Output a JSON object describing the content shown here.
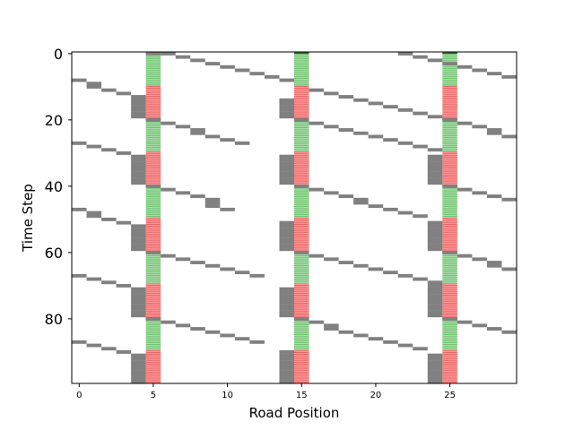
{
  "chart_data": {
    "type": "heatmap",
    "title": "",
    "xlabel": "Road Position",
    "ylabel": "Time Step",
    "x_range": [
      -0.5,
      29.5
    ],
    "y_range": [
      -0.5,
      99.5
    ],
    "y_inverted": true,
    "x_ticks": [
      0,
      5,
      10,
      15,
      20,
      25
    ],
    "y_ticks": [
      0,
      20,
      40,
      60,
      80
    ],
    "grid": false,
    "legend": "none",
    "colors": {
      "vehicle": "#808080",
      "green_light": "#a8dca8",
      "green_light_stripe": "#5cb85c",
      "red_light": "#ff9a9a",
      "red_light_stripe": "#e05050",
      "light_boundary": "#2e6b2e"
    },
    "traffic_lights": {
      "positions": [
        5,
        15,
        25
      ],
      "cycle_length": 20,
      "phases": [
        {
          "state": "green",
          "start": 0,
          "end": 10
        },
        {
          "state": "red",
          "start": 10,
          "end": 20
        }
      ]
    },
    "vehicle_cells": [
      [
        0,
        5
      ],
      [
        0,
        6
      ],
      [
        1,
        7
      ],
      [
        2,
        8
      ],
      [
        3,
        9
      ],
      [
        4,
        10
      ],
      [
        5,
        11
      ],
      [
        6,
        12
      ],
      [
        7,
        13
      ],
      [
        8,
        0
      ],
      [
        8,
        14
      ],
      [
        9,
        1
      ],
      [
        10,
        1
      ],
      [
        11,
        2
      ],
      [
        12,
        3
      ],
      [
        13,
        4
      ],
      [
        14,
        4
      ],
      [
        15,
        4
      ],
      [
        16,
        4
      ],
      [
        17,
        4
      ],
      [
        18,
        4
      ],
      [
        19,
        4
      ],
      [
        0,
        22
      ],
      [
        1,
        23
      ],
      [
        2,
        24
      ],
      [
        3,
        25
      ],
      [
        4,
        26
      ],
      [
        5,
        27
      ],
      [
        6,
        28
      ],
      [
        7,
        29
      ],
      [
        11,
        16
      ],
      [
        12,
        17
      ],
      [
        13,
        18
      ],
      [
        14,
        19
      ],
      [
        15,
        20
      ],
      [
        16,
        21
      ],
      [
        17,
        22
      ],
      [
        18,
        23
      ],
      [
        19,
        24
      ],
      [
        14,
        14
      ],
      [
        15,
        14
      ],
      [
        16,
        14
      ],
      [
        17,
        14
      ],
      [
        18,
        14
      ],
      [
        19,
        14
      ],
      [
        20,
        5
      ],
      [
        21,
        6
      ],
      [
        22,
        7
      ],
      [
        23,
        8
      ],
      [
        24,
        8
      ],
      [
        25,
        9
      ],
      [
        26,
        10
      ],
      [
        27,
        0
      ],
      [
        27,
        11
      ],
      [
        28,
        1
      ],
      [
        29,
        2
      ],
      [
        30,
        3
      ],
      [
        31,
        4
      ],
      [
        32,
        4
      ],
      [
        33,
        4
      ],
      [
        34,
        4
      ],
      [
        35,
        4
      ],
      [
        36,
        4
      ],
      [
        37,
        4
      ],
      [
        38,
        4
      ],
      [
        39,
        4
      ],
      [
        20,
        15
      ],
      [
        21,
        16
      ],
      [
        22,
        17
      ],
      [
        23,
        18
      ],
      [
        24,
        19
      ],
      [
        25,
        20
      ],
      [
        26,
        21
      ],
      [
        27,
        22
      ],
      [
        28,
        23
      ],
      [
        29,
        24
      ],
      [
        31,
        14
      ],
      [
        32,
        14
      ],
      [
        33,
        14
      ],
      [
        34,
        14
      ],
      [
        35,
        14
      ],
      [
        36,
        14
      ],
      [
        37,
        14
      ],
      [
        38,
        14
      ],
      [
        39,
        14
      ],
      [
        20,
        25
      ],
      [
        21,
        26
      ],
      [
        22,
        27
      ],
      [
        23,
        28
      ],
      [
        24,
        28
      ],
      [
        25,
        29
      ],
      [
        31,
        24
      ],
      [
        32,
        24
      ],
      [
        33,
        24
      ],
      [
        34,
        24
      ],
      [
        35,
        24
      ],
      [
        36,
        24
      ],
      [
        37,
        24
      ],
      [
        38,
        24
      ],
      [
        39,
        24
      ],
      [
        40,
        5
      ],
      [
        41,
        6
      ],
      [
        42,
        7
      ],
      [
        43,
        8
      ],
      [
        44,
        9
      ],
      [
        45,
        9
      ],
      [
        46,
        9
      ],
      [
        47,
        0
      ],
      [
        47,
        10
      ],
      [
        48,
        1
      ],
      [
        49,
        1
      ],
      [
        50,
        2
      ],
      [
        51,
        3
      ],
      [
        52,
        4
      ],
      [
        53,
        4
      ],
      [
        54,
        4
      ],
      [
        55,
        4
      ],
      [
        56,
        4
      ],
      [
        57,
        4
      ],
      [
        58,
        4
      ],
      [
        59,
        4
      ],
      [
        40,
        15
      ],
      [
        41,
        16
      ],
      [
        42,
        17
      ],
      [
        43,
        18
      ],
      [
        44,
        19
      ],
      [
        45,
        19
      ],
      [
        46,
        20
      ],
      [
        47,
        21
      ],
      [
        48,
        22
      ],
      [
        49,
        23
      ],
      [
        51,
        14
      ],
      [
        52,
        14
      ],
      [
        53,
        14
      ],
      [
        54,
        14
      ],
      [
        55,
        14
      ],
      [
        56,
        14
      ],
      [
        57,
        14
      ],
      [
        58,
        14
      ],
      [
        59,
        14
      ],
      [
        40,
        25
      ],
      [
        41,
        26
      ],
      [
        42,
        27
      ],
      [
        43,
        28
      ],
      [
        44,
        29
      ],
      [
        51,
        24
      ],
      [
        52,
        24
      ],
      [
        53,
        24
      ],
      [
        54,
        24
      ],
      [
        55,
        24
      ],
      [
        56,
        24
      ],
      [
        57,
        24
      ],
      [
        58,
        24
      ],
      [
        59,
        24
      ],
      [
        60,
        5
      ],
      [
        61,
        6
      ],
      [
        62,
        7
      ],
      [
        63,
        8
      ],
      [
        64,
        9
      ],
      [
        65,
        10
      ],
      [
        66,
        11
      ],
      [
        67,
        0
      ],
      [
        67,
        12
      ],
      [
        68,
        1
      ],
      [
        69,
        2
      ],
      [
        70,
        3
      ],
      [
        71,
        4
      ],
      [
        72,
        4
      ],
      [
        73,
        4
      ],
      [
        74,
        4
      ],
      [
        75,
        4
      ],
      [
        76,
        4
      ],
      [
        77,
        4
      ],
      [
        78,
        4
      ],
      [
        79,
        4
      ],
      [
        60,
        15
      ],
      [
        61,
        16
      ],
      [
        62,
        17
      ],
      [
        63,
        18
      ],
      [
        64,
        19
      ],
      [
        65,
        20
      ],
      [
        66,
        21
      ],
      [
        67,
        22
      ],
      [
        68,
        23
      ],
      [
        69,
        24
      ],
      [
        71,
        14
      ],
      [
        72,
        14
      ],
      [
        73,
        14
      ],
      [
        74,
        14
      ],
      [
        75,
        14
      ],
      [
        76,
        14
      ],
      [
        77,
        14
      ],
      [
        78,
        14
      ],
      [
        79,
        14
      ],
      [
        60,
        25
      ],
      [
        61,
        26
      ],
      [
        62,
        27
      ],
      [
        63,
        28
      ],
      [
        64,
        28
      ],
      [
        65,
        29
      ],
      [
        70,
        24
      ],
      [
        71,
        24
      ],
      [
        72,
        24
      ],
      [
        73,
        24
      ],
      [
        74,
        24
      ],
      [
        75,
        24
      ],
      [
        76,
        24
      ],
      [
        77,
        24
      ],
      [
        78,
        24
      ],
      [
        79,
        24
      ],
      [
        80,
        5
      ],
      [
        81,
        6
      ],
      [
        82,
        7
      ],
      [
        83,
        8
      ],
      [
        84,
        9
      ],
      [
        85,
        10
      ],
      [
        86,
        11
      ],
      [
        87,
        0
      ],
      [
        87,
        12
      ],
      [
        88,
        1
      ],
      [
        89,
        2
      ],
      [
        90,
        3
      ],
      [
        91,
        4
      ],
      [
        92,
        4
      ],
      [
        93,
        4
      ],
      [
        94,
        4
      ],
      [
        95,
        4
      ],
      [
        96,
        4
      ],
      [
        97,
        4
      ],
      [
        98,
        4
      ],
      [
        99,
        4
      ],
      [
        80,
        15
      ],
      [
        81,
        16
      ],
      [
        82,
        17
      ],
      [
        83,
        17
      ],
      [
        84,
        18
      ],
      [
        85,
        19
      ],
      [
        86,
        20
      ],
      [
        87,
        21
      ],
      [
        88,
        22
      ],
      [
        89,
        23
      ],
      [
        90,
        14
      ],
      [
        91,
        14
      ],
      [
        92,
        14
      ],
      [
        93,
        14
      ],
      [
        94,
        14
      ],
      [
        95,
        14
      ],
      [
        96,
        14
      ],
      [
        97,
        14
      ],
      [
        98,
        14
      ],
      [
        99,
        14
      ],
      [
        80,
        25
      ],
      [
        81,
        26
      ],
      [
        82,
        27
      ],
      [
        83,
        28
      ],
      [
        84,
        29
      ],
      [
        91,
        24
      ],
      [
        92,
        24
      ],
      [
        93,
        24
      ],
      [
        94,
        24
      ],
      [
        95,
        24
      ],
      [
        96,
        24
      ],
      [
        97,
        24
      ],
      [
        98,
        24
      ],
      [
        99,
        24
      ]
    ]
  }
}
